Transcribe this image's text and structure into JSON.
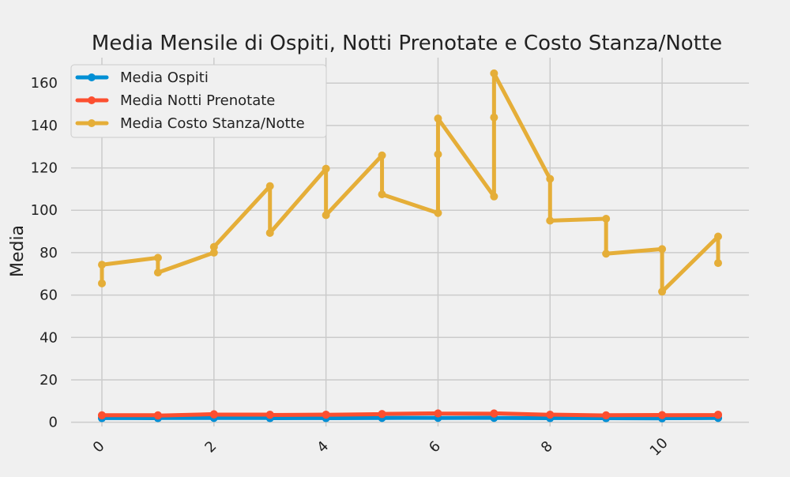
{
  "chart_data": {
    "type": "line",
    "title": "Media Mensile di Ospiti, Notti Prenotate e Costo Stanza/Notte",
    "xlabel": "",
    "ylabel": "Media",
    "xlim": [
      -0.55,
      11.55
    ],
    "ylim": [
      -2,
      172
    ],
    "xticks": [
      0,
      2,
      4,
      6,
      8,
      10
    ],
    "yticks": [
      0,
      20,
      40,
      60,
      80,
      100,
      120,
      140,
      160
    ],
    "grid": true,
    "legend_position": "top-left",
    "series": [
      {
        "name": "Media Ospiti",
        "color": "#008fd5",
        "points": [
          [
            0,
            1.9
          ],
          [
            0,
            2.0
          ],
          [
            1,
            1.9
          ],
          [
            1,
            2.0
          ],
          [
            2,
            2.0
          ],
          [
            2,
            2.0
          ],
          [
            3,
            2.0
          ],
          [
            3,
            1.9
          ],
          [
            4,
            2.0
          ],
          [
            4,
            1.9
          ],
          [
            5,
            2.0
          ],
          [
            5,
            2.0
          ],
          [
            6,
            2.1
          ],
          [
            6,
            2.0
          ],
          [
            7,
            2.1
          ],
          [
            7,
            2.0
          ],
          [
            8,
            1.9
          ],
          [
            8,
            2.0
          ],
          [
            9,
            1.9
          ],
          [
            9,
            1.9
          ],
          [
            10,
            1.8
          ],
          [
            10,
            1.9
          ],
          [
            11,
            2.0
          ],
          [
            11,
            2.0
          ]
        ]
      },
      {
        "name": "Media Notti Prenotate",
        "color": "#fc4f30",
        "points": [
          [
            0,
            3.2
          ],
          [
            0,
            3.3
          ],
          [
            1,
            3.3
          ],
          [
            1,
            3.1
          ],
          [
            2,
            3.8
          ],
          [
            2,
            3.6
          ],
          [
            3,
            3.6
          ],
          [
            3,
            3.4
          ],
          [
            4,
            3.6
          ],
          [
            4,
            3.5
          ],
          [
            5,
            3.8
          ],
          [
            5,
            3.9
          ],
          [
            6,
            4.2
          ],
          [
            6,
            4.1
          ],
          [
            7,
            4.0
          ],
          [
            7,
            4.2
          ],
          [
            8,
            3.5
          ],
          [
            8,
            3.6
          ],
          [
            9,
            3.2
          ],
          [
            9,
            3.3
          ],
          [
            10,
            3.4
          ],
          [
            10,
            3.3
          ],
          [
            11,
            3.4
          ],
          [
            11,
            3.6
          ]
        ]
      },
      {
        "name": "Media Costo Stanza/Notte",
        "color": "#e5ae38",
        "points": [
          [
            0,
            65.5
          ],
          [
            0,
            74.3
          ],
          [
            1,
            77.6
          ],
          [
            1,
            70.6
          ],
          [
            2,
            80.0
          ],
          [
            2,
            82.7
          ],
          [
            3,
            111.4
          ],
          [
            3,
            89.3
          ],
          [
            4,
            119.6
          ],
          [
            4,
            97.7
          ],
          [
            5,
            125.9
          ],
          [
            5,
            107.5
          ],
          [
            6,
            98.7
          ],
          [
            6,
            126.4
          ],
          [
            6,
            143.3
          ],
          [
            7,
            106.5
          ],
          [
            7,
            143.8
          ],
          [
            7,
            164.6
          ],
          [
            8,
            114.8
          ],
          [
            8,
            95.1
          ],
          [
            9,
            96.0
          ],
          [
            9,
            79.5
          ],
          [
            10,
            81.7
          ],
          [
            10,
            61.6
          ],
          [
            11,
            87.6
          ],
          [
            11,
            75.1
          ]
        ]
      }
    ]
  }
}
